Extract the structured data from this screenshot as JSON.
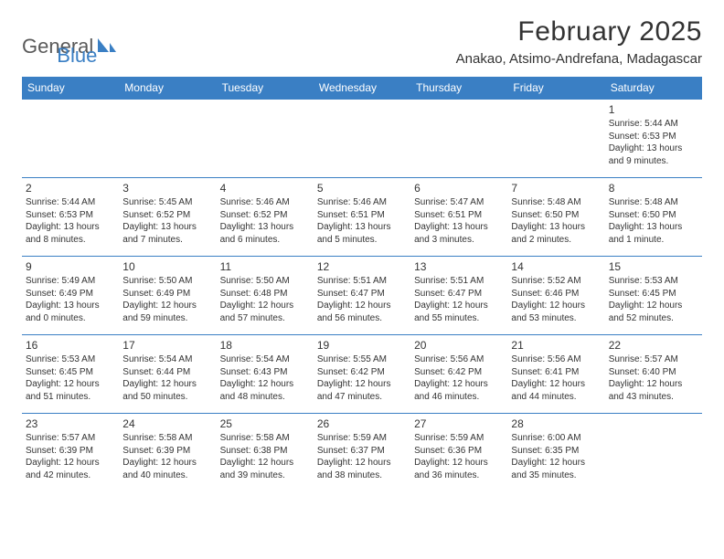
{
  "logo": {
    "textGeneral": "General",
    "textBlue": "Blue"
  },
  "header": {
    "monthTitle": "February 2025",
    "location": "Anakao, Atsimo-Andrefana, Madagascar"
  },
  "colors": {
    "headerBar": "#3a7fc4",
    "ruleLine": "#3a7fc4",
    "text": "#333333",
    "logoGray": "#5a5a5a",
    "logoBlue": "#3a7fc4",
    "background": "#ffffff"
  },
  "dayNames": [
    "Sunday",
    "Monday",
    "Tuesday",
    "Wednesday",
    "Thursday",
    "Friday",
    "Saturday"
  ],
  "weeks": [
    [
      null,
      null,
      null,
      null,
      null,
      null,
      {
        "n": "1",
        "sr": "Sunrise: 5:44 AM",
        "ss": "Sunset: 6:53 PM",
        "dl": "Daylight: 13 hours and 9 minutes."
      }
    ],
    [
      {
        "n": "2",
        "sr": "Sunrise: 5:44 AM",
        "ss": "Sunset: 6:53 PM",
        "dl": "Daylight: 13 hours and 8 minutes."
      },
      {
        "n": "3",
        "sr": "Sunrise: 5:45 AM",
        "ss": "Sunset: 6:52 PM",
        "dl": "Daylight: 13 hours and 7 minutes."
      },
      {
        "n": "4",
        "sr": "Sunrise: 5:46 AM",
        "ss": "Sunset: 6:52 PM",
        "dl": "Daylight: 13 hours and 6 minutes."
      },
      {
        "n": "5",
        "sr": "Sunrise: 5:46 AM",
        "ss": "Sunset: 6:51 PM",
        "dl": "Daylight: 13 hours and 5 minutes."
      },
      {
        "n": "6",
        "sr": "Sunrise: 5:47 AM",
        "ss": "Sunset: 6:51 PM",
        "dl": "Daylight: 13 hours and 3 minutes."
      },
      {
        "n": "7",
        "sr": "Sunrise: 5:48 AM",
        "ss": "Sunset: 6:50 PM",
        "dl": "Daylight: 13 hours and 2 minutes."
      },
      {
        "n": "8",
        "sr": "Sunrise: 5:48 AM",
        "ss": "Sunset: 6:50 PM",
        "dl": "Daylight: 13 hours and 1 minute."
      }
    ],
    [
      {
        "n": "9",
        "sr": "Sunrise: 5:49 AM",
        "ss": "Sunset: 6:49 PM",
        "dl": "Daylight: 13 hours and 0 minutes."
      },
      {
        "n": "10",
        "sr": "Sunrise: 5:50 AM",
        "ss": "Sunset: 6:49 PM",
        "dl": "Daylight: 12 hours and 59 minutes."
      },
      {
        "n": "11",
        "sr": "Sunrise: 5:50 AM",
        "ss": "Sunset: 6:48 PM",
        "dl": "Daylight: 12 hours and 57 minutes."
      },
      {
        "n": "12",
        "sr": "Sunrise: 5:51 AM",
        "ss": "Sunset: 6:47 PM",
        "dl": "Daylight: 12 hours and 56 minutes."
      },
      {
        "n": "13",
        "sr": "Sunrise: 5:51 AM",
        "ss": "Sunset: 6:47 PM",
        "dl": "Daylight: 12 hours and 55 minutes."
      },
      {
        "n": "14",
        "sr": "Sunrise: 5:52 AM",
        "ss": "Sunset: 6:46 PM",
        "dl": "Daylight: 12 hours and 53 minutes."
      },
      {
        "n": "15",
        "sr": "Sunrise: 5:53 AM",
        "ss": "Sunset: 6:45 PM",
        "dl": "Daylight: 12 hours and 52 minutes."
      }
    ],
    [
      {
        "n": "16",
        "sr": "Sunrise: 5:53 AM",
        "ss": "Sunset: 6:45 PM",
        "dl": "Daylight: 12 hours and 51 minutes."
      },
      {
        "n": "17",
        "sr": "Sunrise: 5:54 AM",
        "ss": "Sunset: 6:44 PM",
        "dl": "Daylight: 12 hours and 50 minutes."
      },
      {
        "n": "18",
        "sr": "Sunrise: 5:54 AM",
        "ss": "Sunset: 6:43 PM",
        "dl": "Daylight: 12 hours and 48 minutes."
      },
      {
        "n": "19",
        "sr": "Sunrise: 5:55 AM",
        "ss": "Sunset: 6:42 PM",
        "dl": "Daylight: 12 hours and 47 minutes."
      },
      {
        "n": "20",
        "sr": "Sunrise: 5:56 AM",
        "ss": "Sunset: 6:42 PM",
        "dl": "Daylight: 12 hours and 46 minutes."
      },
      {
        "n": "21",
        "sr": "Sunrise: 5:56 AM",
        "ss": "Sunset: 6:41 PM",
        "dl": "Daylight: 12 hours and 44 minutes."
      },
      {
        "n": "22",
        "sr": "Sunrise: 5:57 AM",
        "ss": "Sunset: 6:40 PM",
        "dl": "Daylight: 12 hours and 43 minutes."
      }
    ],
    [
      {
        "n": "23",
        "sr": "Sunrise: 5:57 AM",
        "ss": "Sunset: 6:39 PM",
        "dl": "Daylight: 12 hours and 42 minutes."
      },
      {
        "n": "24",
        "sr": "Sunrise: 5:58 AM",
        "ss": "Sunset: 6:39 PM",
        "dl": "Daylight: 12 hours and 40 minutes."
      },
      {
        "n": "25",
        "sr": "Sunrise: 5:58 AM",
        "ss": "Sunset: 6:38 PM",
        "dl": "Daylight: 12 hours and 39 minutes."
      },
      {
        "n": "26",
        "sr": "Sunrise: 5:59 AM",
        "ss": "Sunset: 6:37 PM",
        "dl": "Daylight: 12 hours and 38 minutes."
      },
      {
        "n": "27",
        "sr": "Sunrise: 5:59 AM",
        "ss": "Sunset: 6:36 PM",
        "dl": "Daylight: 12 hours and 36 minutes."
      },
      {
        "n": "28",
        "sr": "Sunrise: 6:00 AM",
        "ss": "Sunset: 6:35 PM",
        "dl": "Daylight: 12 hours and 35 minutes."
      },
      null
    ]
  ]
}
